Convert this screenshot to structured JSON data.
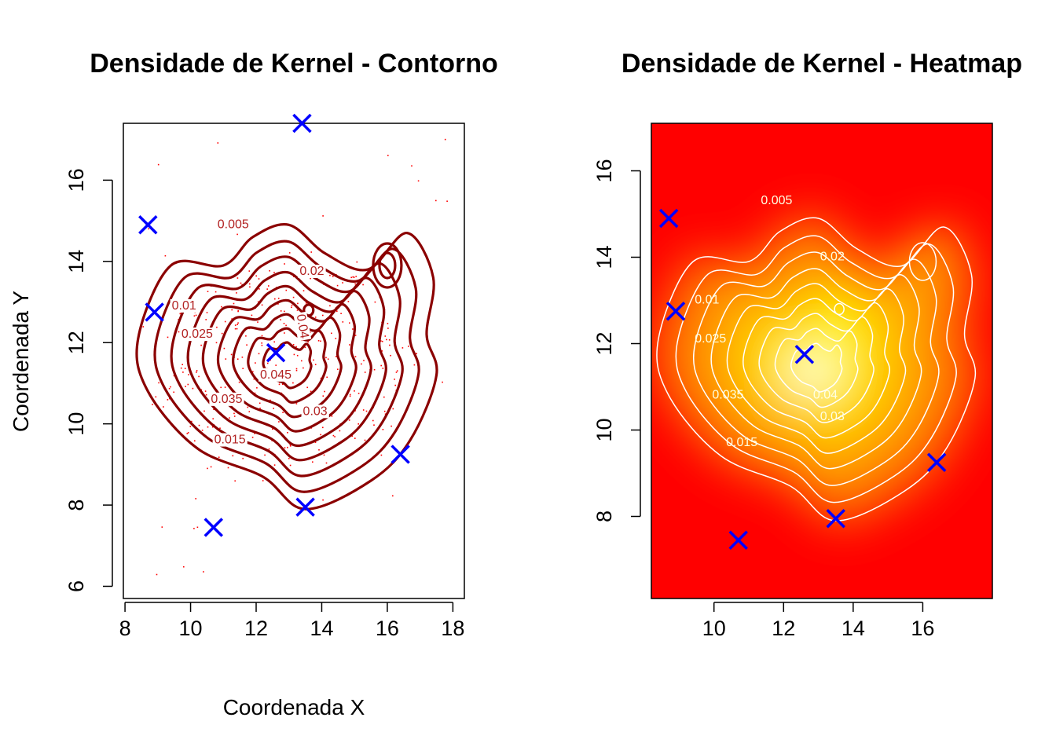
{
  "chart_data": [
    {
      "type": "contour",
      "title": "Densidade de Kernel - Contorno",
      "xlabel": "Coordenada X",
      "ylabel": "Coordenada Y",
      "xlim": [
        7.95,
        18.35
      ],
      "ylim": [
        5.7,
        17.4
      ],
      "xticks": [
        8,
        10,
        12,
        14,
        16,
        18
      ],
      "yticks": [
        6,
        8,
        10,
        12,
        14,
        16
      ],
      "contour_levels": [
        "0.005",
        "0.01",
        "0.015",
        "0.02",
        "0.025",
        "0.03",
        "0.035",
        "0.04",
        "0.045"
      ],
      "line_color": "#8B0000",
      "point_color": "#FF0000",
      "marker_color": "#0000FF",
      "markers": [
        {
          "x": 13.4,
          "y": 17.4
        },
        {
          "x": 8.7,
          "y": 14.9
        },
        {
          "x": 8.9,
          "y": 12.75
        },
        {
          "x": 12.6,
          "y": 11.75
        },
        {
          "x": 16.4,
          "y": 9.25
        },
        {
          "x": 13.5,
          "y": 7.95
        },
        {
          "x": 10.7,
          "y": 7.45
        }
      ]
    },
    {
      "type": "heatmap",
      "title": "Densidade de Kernel - Heatmap",
      "xlim": [
        8.2,
        18.0
      ],
      "ylim": [
        6.1,
        17.1
      ],
      "xticks": [
        10,
        12,
        14,
        16
      ],
      "yticks": [
        8,
        10,
        12,
        14,
        16
      ],
      "contour_levels": [
        "0.005",
        "0.01",
        "0.015",
        "0.02",
        "0.025",
        "0.03",
        "0.035",
        "0.04"
      ],
      "colors": {
        "low": "#FF0000",
        "mid": "#FFA500",
        "high": "#FFFF00",
        "peak": "#FFFFF0",
        "contour": "#FFFFFF"
      },
      "marker_color": "#0000FF",
      "markers": [
        {
          "x": 8.7,
          "y": 14.9
        },
        {
          "x": 8.9,
          "y": 12.75
        },
        {
          "x": 12.6,
          "y": 11.75
        },
        {
          "x": 16.4,
          "y": 9.25
        },
        {
          "x": 13.5,
          "y": 7.95
        },
        {
          "x": 10.7,
          "y": 7.45
        }
      ]
    }
  ]
}
